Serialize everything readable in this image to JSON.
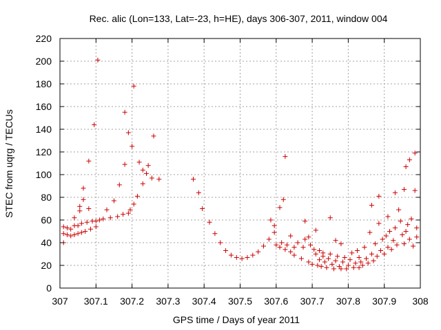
{
  "chart_data": {
    "type": "scatter",
    "title": "Rec. alic (Lon=133, Lat=-23, h=HE), days 306-307, 2011, window 004",
    "xlabel": "GPS time / Days of year 2011",
    "ylabel": "STEC from uqrg / TECUs",
    "xlim": [
      307,
      308
    ],
    "ylim": [
      0,
      220
    ],
    "xticks": [
      "307",
      "307.1",
      "307.2",
      "307.3",
      "307.4",
      "307.5",
      "307.6",
      "307.7",
      "307.8",
      "307.9",
      "308"
    ],
    "yticks": [
      "0",
      "20",
      "40",
      "60",
      "80",
      "100",
      "120",
      "140",
      "160",
      "180",
      "200",
      "220"
    ],
    "grid": true,
    "marker": "+",
    "color": "#cc0000",
    "points": [
      [
        307.01,
        40
      ],
      [
        307.01,
        48
      ],
      [
        307.01,
        54
      ],
      [
        307.02,
        47
      ],
      [
        307.02,
        53
      ],
      [
        307.03,
        46
      ],
      [
        307.03,
        52
      ],
      [
        307.04,
        47
      ],
      [
        307.04,
        55
      ],
      [
        307.04,
        62
      ],
      [
        307.05,
        48
      ],
      [
        307.05,
        55
      ],
      [
        307.055,
        68
      ],
      [
        307.055,
        72
      ],
      [
        307.06,
        49
      ],
      [
        307.06,
        57
      ],
      [
        307.065,
        78
      ],
      [
        307.065,
        88
      ],
      [
        307.07,
        50
      ],
      [
        307.075,
        58
      ],
      [
        307.08,
        70
      ],
      [
        307.08,
        112
      ],
      [
        307.085,
        52
      ],
      [
        307.09,
        59
      ],
      [
        307.095,
        144
      ],
      [
        307.1,
        54
      ],
      [
        307.1,
        59
      ],
      [
        307.105,
        201
      ],
      [
        307.11,
        60
      ],
      [
        307.12,
        61
      ],
      [
        307.13,
        69
      ],
      [
        307.14,
        62
      ],
      [
        307.15,
        77
      ],
      [
        307.16,
        63
      ],
      [
        307.165,
        91
      ],
      [
        307.175,
        65
      ],
      [
        307.18,
        109
      ],
      [
        307.18,
        155
      ],
      [
        307.19,
        66
      ],
      [
        307.19,
        137
      ],
      [
        307.195,
        69
      ],
      [
        307.2,
        125
      ],
      [
        307.205,
        178
      ],
      [
        307.205,
        74
      ],
      [
        307.215,
        81
      ],
      [
        307.22,
        111
      ],
      [
        307.23,
        104
      ],
      [
        307.23,
        92
      ],
      [
        307.24,
        101
      ],
      [
        307.245,
        108
      ],
      [
        307.255,
        97
      ],
      [
        307.26,
        134
      ],
      [
        307.275,
        96
      ],
      [
        307.37,
        96
      ],
      [
        307.385,
        84
      ],
      [
        307.395,
        70
      ],
      [
        307.415,
        58
      ],
      [
        307.43,
        48
      ],
      [
        307.445,
        40
      ],
      [
        307.46,
        33
      ],
      [
        307.475,
        29
      ],
      [
        307.49,
        27
      ],
      [
        307.505,
        26
      ],
      [
        307.52,
        27
      ],
      [
        307.535,
        29
      ],
      [
        307.55,
        32
      ],
      [
        307.565,
        37
      ],
      [
        307.58,
        43
      ],
      [
        307.585,
        60
      ],
      [
        307.595,
        49
      ],
      [
        307.595,
        55
      ],
      [
        307.6,
        38
      ],
      [
        307.61,
        71
      ],
      [
        307.61,
        36
      ],
      [
        307.615,
        40
      ],
      [
        307.62,
        78
      ],
      [
        307.625,
        116
      ],
      [
        307.625,
        34
      ],
      [
        307.63,
        38
      ],
      [
        307.64,
        32
      ],
      [
        307.64,
        46
      ],
      [
        307.65,
        29
      ],
      [
        307.65,
        36
      ],
      [
        307.66,
        40
      ],
      [
        307.67,
        26
      ],
      [
        307.675,
        36
      ],
      [
        307.68,
        59
      ],
      [
        307.68,
        43
      ],
      [
        307.69,
        23
      ],
      [
        307.69,
        45
      ],
      [
        307.695,
        38
      ],
      [
        307.7,
        21
      ],
      [
        307.705,
        34
      ],
      [
        307.71,
        51
      ],
      [
        307.71,
        30
      ],
      [
        307.715,
        20
      ],
      [
        307.72,
        33
      ],
      [
        307.72,
        25
      ],
      [
        307.725,
        19
      ],
      [
        307.73,
        28
      ],
      [
        307.73,
        31
      ],
      [
        307.735,
        23
      ],
      [
        307.74,
        18
      ],
      [
        307.745,
        26
      ],
      [
        307.75,
        62
      ],
      [
        307.75,
        30
      ],
      [
        307.755,
        21
      ],
      [
        307.76,
        17
      ],
      [
        307.765,
        24
      ],
      [
        307.765,
        42
      ],
      [
        307.77,
        28
      ],
      [
        307.775,
        19
      ],
      [
        307.78,
        17
      ],
      [
        307.78,
        39
      ],
      [
        307.785,
        23
      ],
      [
        307.79,
        27
      ],
      [
        307.795,
        17
      ],
      [
        307.8,
        20
      ],
      [
        307.805,
        25
      ],
      [
        307.81,
        31
      ],
      [
        307.815,
        18
      ],
      [
        307.82,
        22
      ],
      [
        307.825,
        33
      ],
      [
        307.83,
        18
      ],
      [
        307.83,
        27
      ],
      [
        307.835,
        23
      ],
      [
        307.84,
        20
      ],
      [
        307.845,
        36
      ],
      [
        307.85,
        26
      ],
      [
        307.855,
        22
      ],
      [
        307.86,
        49
      ],
      [
        307.865,
        73
      ],
      [
        307.865,
        30
      ],
      [
        307.87,
        24
      ],
      [
        307.875,
        39
      ],
      [
        307.88,
        28
      ],
      [
        307.885,
        57
      ],
      [
        307.885,
        81
      ],
      [
        307.89,
        33
      ],
      [
        307.895,
        43
      ],
      [
        307.9,
        30
      ],
      [
        307.905,
        46
      ],
      [
        307.91,
        63
      ],
      [
        307.91,
        36
      ],
      [
        307.915,
        50
      ],
      [
        307.92,
        34
      ],
      [
        307.925,
        42
      ],
      [
        307.93,
        84
      ],
      [
        307.93,
        53
      ],
      [
        307.935,
        38
      ],
      [
        307.94,
        69
      ],
      [
        307.945,
        59
      ],
      [
        307.95,
        47
      ],
      [
        307.955,
        87
      ],
      [
        307.955,
        39
      ],
      [
        307.96,
        107
      ],
      [
        307.96,
        50
      ],
      [
        307.965,
        56
      ],
      [
        307.97,
        113
      ],
      [
        307.97,
        43
      ],
      [
        307.975,
        61
      ],
      [
        307.98,
        37
      ],
      [
        307.985,
        119
      ],
      [
        307.985,
        86
      ],
      [
        307.99,
        45
      ],
      [
        307.99,
        53
      ]
    ]
  }
}
